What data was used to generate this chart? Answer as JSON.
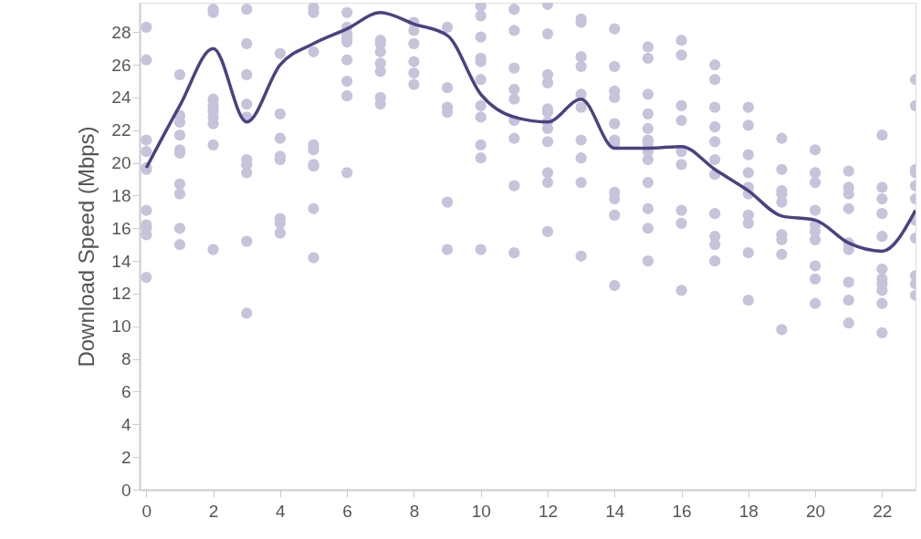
{
  "chart_data": {
    "type": "scatter",
    "ylabel": "Download Speed (Mbps)",
    "xlim": [
      -0.2,
      23
    ],
    "xticks": [
      0,
      2,
      4,
      6,
      8,
      10,
      12,
      14,
      16,
      18,
      20,
      22
    ],
    "ylim": [
      0,
      29.8
    ],
    "yticks": [
      0,
      2,
      4,
      6,
      8,
      10,
      12,
      14,
      16,
      18,
      20,
      22,
      24,
      26,
      28
    ],
    "grid": false,
    "marker": "circle",
    "series": [
      {
        "type": "scatter",
        "color": "#c6c3da",
        "x": [
          0,
          0,
          0,
          0,
          0,
          0,
          0,
          0,
          0,
          0,
          0,
          1,
          1,
          1,
          1,
          1,
          1,
          1,
          1,
          1,
          1,
          2,
          2,
          2,
          2,
          2,
          2,
          2,
          2,
          2,
          3,
          3,
          3,
          3,
          3,
          3,
          3,
          3,
          3,
          3,
          4,
          4,
          4,
          4,
          4,
          4,
          4,
          4,
          5,
          5,
          5,
          5,
          5,
          5,
          5,
          5,
          5,
          6,
          6,
          6,
          6,
          6,
          6,
          6,
          6,
          6,
          7,
          7,
          7,
          7,
          7,
          7,
          7,
          8,
          8,
          8,
          8,
          8,
          8,
          9,
          9,
          9,
          9,
          9,
          9,
          10,
          10,
          10,
          10,
          10,
          10,
          10,
          10,
          10,
          10,
          10,
          11,
          11,
          11,
          11,
          11,
          11,
          11,
          11,
          11,
          12,
          12,
          12,
          12,
          12,
          12,
          12,
          12,
          12,
          12,
          12,
          12,
          13,
          13,
          13,
          13,
          13,
          13,
          13,
          13,
          13,
          13,
          14,
          14,
          14,
          14,
          14,
          14,
          14,
          14,
          14,
          14,
          14,
          15,
          15,
          15,
          15,
          15,
          15,
          15,
          15,
          15,
          15,
          15,
          15,
          15,
          16,
          16,
          16,
          16,
          16,
          16,
          16,
          16,
          16,
          17,
          17,
          17,
          17,
          17,
          17,
          17,
          17,
          17,
          17,
          17,
          18,
          18,
          18,
          18,
          18,
          18,
          18,
          18,
          18,
          18,
          19,
          19,
          19,
          19,
          19,
          19,
          19,
          19,
          19,
          20,
          20,
          20,
          20,
          20,
          20,
          20,
          20,
          20,
          20,
          21,
          21,
          21,
          21,
          21,
          21,
          21,
          21,
          21,
          22,
          22,
          22,
          22,
          22,
          22,
          22,
          22,
          22,
          22,
          22,
          23,
          23,
          23,
          23,
          23,
          23,
          23,
          23,
          23,
          23,
          23
        ],
        "values": [
          28.3,
          26.3,
          21.4,
          20.7,
          19.7,
          19.6,
          17.1,
          16.2,
          16.0,
          15.6,
          13.0,
          25.4,
          22.9,
          22.5,
          21.7,
          20.8,
          20.6,
          18.7,
          18.1,
          16.0,
          15.0,
          29.4,
          29.2,
          23.9,
          23.5,
          23.2,
          22.8,
          22.4,
          21.1,
          14.7,
          29.4,
          27.3,
          25.4,
          23.6,
          22.8,
          20.2,
          19.9,
          19.4,
          15.2,
          10.8,
          26.7,
          23.0,
          21.5,
          20.4,
          20.2,
          16.6,
          16.3,
          15.7,
          29.5,
          29.2,
          26.8,
          21.1,
          20.8,
          19.9,
          19.8,
          17.2,
          14.2,
          29.2,
          28.3,
          27.9,
          27.6,
          27.4,
          26.3,
          25.0,
          24.1,
          19.4,
          27.5,
          27.3,
          26.8,
          26.1,
          25.6,
          24.0,
          23.6,
          28.6,
          28.1,
          27.3,
          26.2,
          25.5,
          24.8,
          28.3,
          24.6,
          23.4,
          23.1,
          17.6,
          14.7,
          29.6,
          29.0,
          27.7,
          26.4,
          26.2,
          25.1,
          23.5,
          22.8,
          21.1,
          20.3,
          14.7,
          29.4,
          28.1,
          25.8,
          24.5,
          23.9,
          22.6,
          21.5,
          18.6,
          14.5,
          29.7,
          27.9,
          25.4,
          24.9,
          23.3,
          23.1,
          22.5,
          22.1,
          21.3,
          19.4,
          18.8,
          15.8,
          28.8,
          28.6,
          26.5,
          25.9,
          24.2,
          23.4,
          21.4,
          20.3,
          18.8,
          14.3,
          28.2,
          25.9,
          24.4,
          24.0,
          22.4,
          21.4,
          21.2,
          18.2,
          17.8,
          16.8,
          12.5,
          27.1,
          26.4,
          24.2,
          23.0,
          22.1,
          21.4,
          21.2,
          20.7,
          20.2,
          18.8,
          17.2,
          16.0,
          14.0,
          27.5,
          26.6,
          23.5,
          22.6,
          20.7,
          19.9,
          17.1,
          16.3,
          12.2,
          26.0,
          25.1,
          23.4,
          22.2,
          21.3,
          20.2,
          19.3,
          16.9,
          15.5,
          15.0,
          14.0,
          23.4,
          22.3,
          20.5,
          19.4,
          18.5,
          18.1,
          16.8,
          16.3,
          14.5,
          11.6,
          21.5,
          19.6,
          18.3,
          18.1,
          17.6,
          15.6,
          15.3,
          14.4,
          9.8,
          20.8,
          19.4,
          18.8,
          17.1,
          16.2,
          15.8,
          15.3,
          13.7,
          12.9,
          11.4,
          19.5,
          18.5,
          18.1,
          17.2,
          15.1,
          14.7,
          12.7,
          11.6,
          10.2,
          21.7,
          18.5,
          17.8,
          16.9,
          15.5,
          13.5,
          12.9,
          12.6,
          12.2,
          11.4,
          9.6,
          25.1,
          23.5,
          19.6,
          19.4,
          18.6,
          17.8,
          16.5,
          15.4,
          13.1,
          12.6,
          11.9
        ]
      },
      {
        "type": "line",
        "color": "#4a4280",
        "marker": "none",
        "x": [
          0,
          1,
          2,
          3,
          4,
          5,
          6,
          7,
          8,
          9,
          10,
          11,
          12,
          13,
          14,
          15,
          16,
          17,
          18,
          19,
          20,
          21,
          22,
          23
        ],
        "values": [
          19.7,
          23.5,
          27.0,
          22.5,
          26.0,
          27.3,
          28.2,
          29.2,
          28.5,
          27.8,
          24.2,
          22.8,
          22.5,
          23.9,
          20.9,
          20.9,
          21.0,
          19.6,
          18.3,
          16.75,
          16.5,
          15.1,
          14.6,
          17.1
        ]
      }
    ]
  }
}
